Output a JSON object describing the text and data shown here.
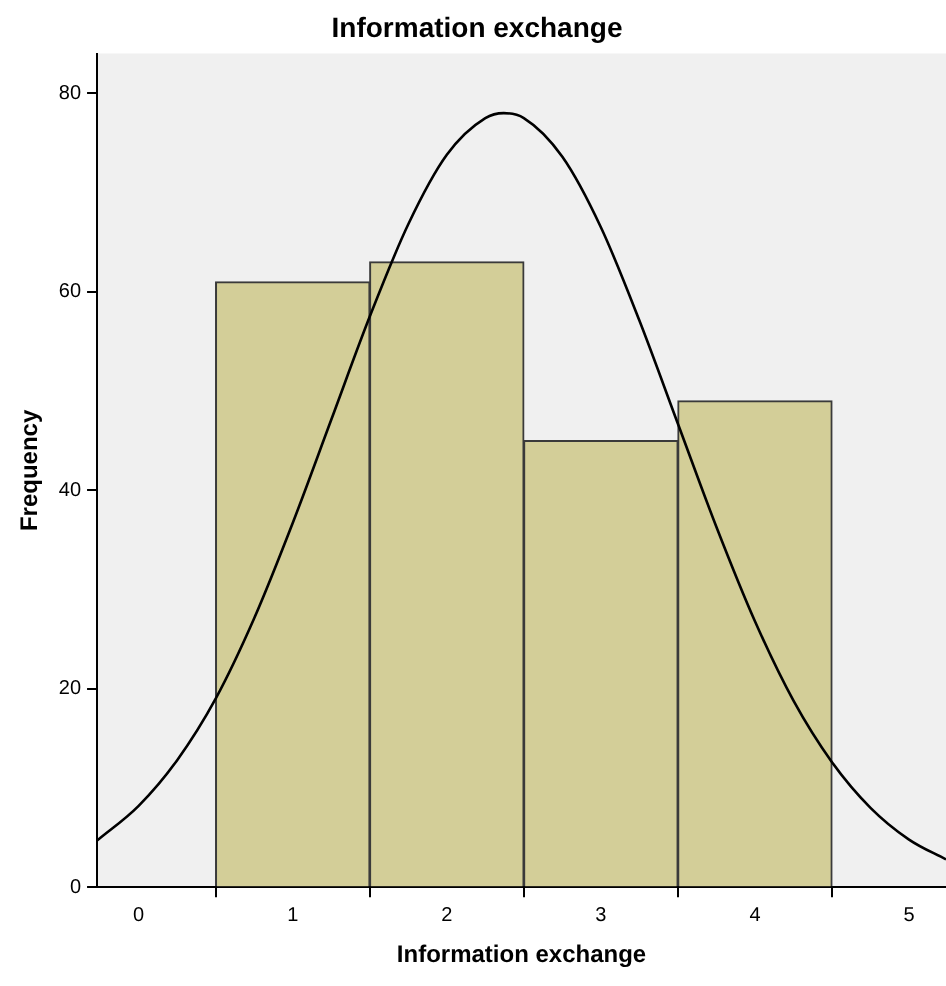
{
  "chart_data": {
    "type": "histogram",
    "title": "Information exchange",
    "xlabel": "Information exchange",
    "ylabel": "Frequency",
    "bins": [
      0.5,
      1.5,
      2.5,
      3.5,
      4.5
    ],
    "values": [
      61,
      63,
      45,
      49
    ],
    "color": "#d3ce98",
    "series": [
      {
        "type": "line",
        "color": "#000000",
        "x": [
          -0.27,
          0,
          0.25,
          0.5,
          0.75,
          1,
          1.25,
          1.5,
          1.75,
          2,
          2.25,
          2.37,
          2.5,
          2.75,
          3,
          3.25,
          3.5,
          3.75,
          4,
          4.25,
          4.5,
          4.75,
          5,
          5.24
        ],
        "values": [
          4.7,
          8.2,
          12.8,
          19,
          27.1,
          36.7,
          47.1,
          57.5,
          66.8,
          73.8,
          77.5,
          78,
          77.5,
          73.6,
          66.5,
          57.1,
          46.7,
          36.3,
          26.8,
          18.8,
          12.6,
          8,
          4.8,
          2.8
        ]
      }
    ],
    "xlim": [
      -0.27,
      5.24
    ],
    "xticks": [
      0,
      1,
      2,
      3,
      4,
      5
    ],
    "ylim": [
      0,
      84
    ],
    "yticks": [
      0,
      20,
      40,
      60,
      80
    ],
    "grid": false,
    "legend": false,
    "marker": "none",
    "line_style": "solid"
  }
}
